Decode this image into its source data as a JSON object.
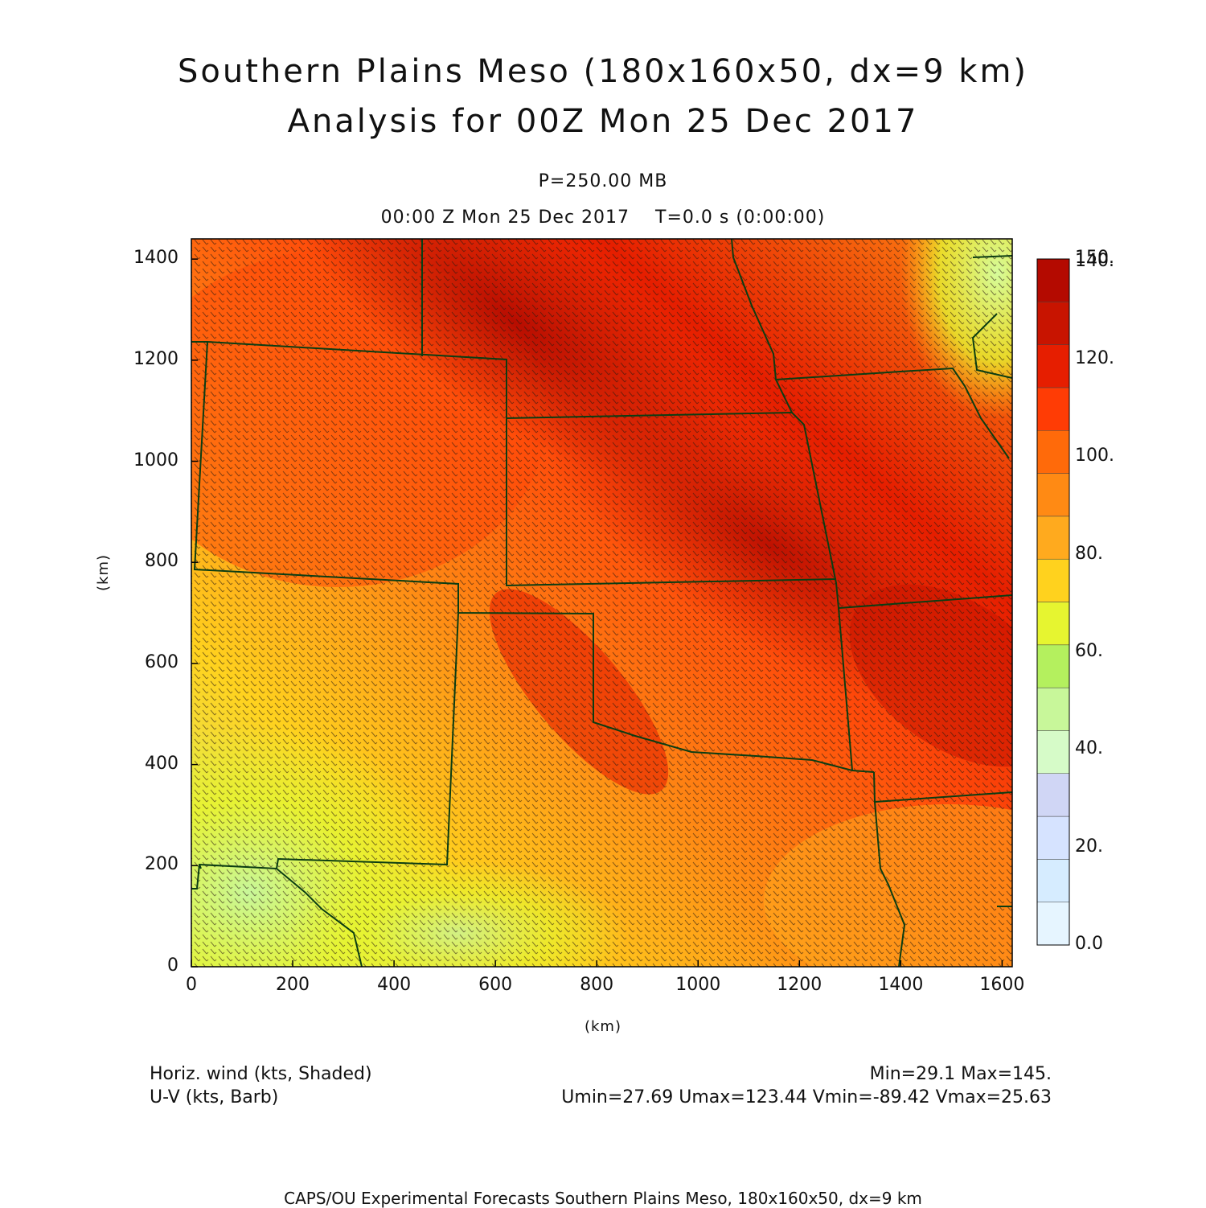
{
  "title": {
    "line1": "Southern Plains Meso (180x160x50, dx=9 km)",
    "line2": "Analysis for 00Z Mon 25 Dec 2017"
  },
  "subtitle": {
    "level": "P=250.00 MB",
    "time": "00:00 Z Mon 25 Dec 2017    T=0.0 s (0:00:00)"
  },
  "axes": {
    "x_label": "(km)",
    "y_label": "(km)",
    "x_ticks": [
      "0",
      "200",
      "400",
      "600",
      "800",
      "1000",
      "1200",
      "1400",
      "1600"
    ],
    "y_ticks": [
      "0",
      "200",
      "400",
      "600",
      "800",
      "1000",
      "1200",
      "1400"
    ],
    "x_range": [
      0,
      1620
    ],
    "y_range": [
      0,
      1440
    ]
  },
  "colorbar": {
    "labels": [
      "150.",
      "140.",
      "120.",
      "100.",
      "80.",
      "60.",
      "40.",
      "20.",
      "0.0"
    ],
    "levels": [
      0,
      10,
      20,
      30,
      40,
      50,
      60,
      70,
      80,
      90,
      100,
      110,
      120,
      130,
      140,
      150
    ],
    "colors": [
      "#e6f5ff",
      "#d6ecff",
      "#d6e3ff",
      "#d0d6f5",
      "#d6fbc8",
      "#c8f79a",
      "#b4f05e",
      "#e6f530",
      "#ffd21e",
      "#ffaa1e",
      "#ff8a14",
      "#ff6a0a",
      "#ff3c05",
      "#e61e00",
      "#c81400",
      "#b40a00"
    ]
  },
  "legend": {
    "field1": "Horiz. wind (kts, Shaded)",
    "field2": "U-V (kts, Barb)",
    "minmax": "Min=29.1  Max=145.",
    "uvminmax": "Umin=27.69  Umax=123.44  Vmin=-89.42  Vmax=25.63"
  },
  "footer": "CAPS/OU Experimental Forecasts  Southern Plains Meso, 180x160x50, dx=9 km",
  "map": {
    "field": "Horiz. wind",
    "units": "kts",
    "min": 29.1,
    "max": 145,
    "jet_axis_direction": "northwest-southeast",
    "border_color": "#0b3d12",
    "barb_color": "#222222"
  }
}
